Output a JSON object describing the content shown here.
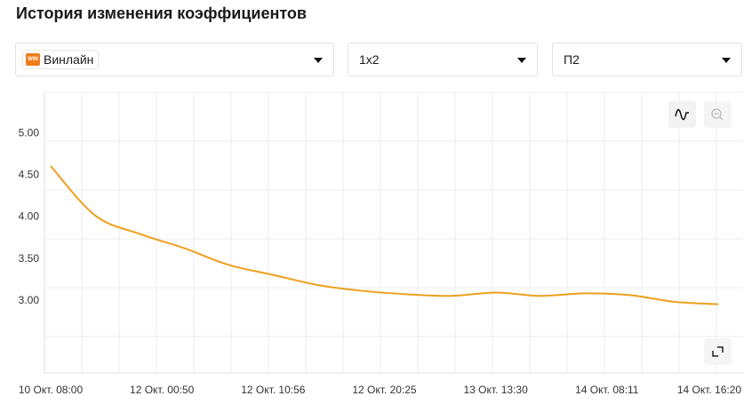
{
  "header": {
    "title": "История изменения коэффициентов"
  },
  "filters": {
    "bookmaker": "Винлайн",
    "bookmaker_icon": "WIN",
    "market": "1x2",
    "outcome": "П2"
  },
  "chart_data": {
    "type": "line",
    "x": [
      0,
      1,
      2,
      3,
      4,
      5,
      6,
      7,
      8,
      9,
      10,
      11,
      12,
      13,
      14,
      15
    ],
    "xlim": [
      -0.14,
      15.56
    ],
    "xticks": [
      {
        "value": 0,
        "label": "10 Окт. 08:00"
      },
      {
        "value": 2.5,
        "label": "12 Окт. 00:50"
      },
      {
        "value": 5,
        "label": "12 Окт. 10:56"
      },
      {
        "value": 7.5,
        "label": "12 Окт. 20:25"
      },
      {
        "value": 10,
        "label": "13 Окт. 13:30"
      },
      {
        "value": 12.5,
        "label": "14 Окт. 08:11"
      },
      {
        "value": 14.8,
        "label": "14 Окт. 16:20"
      }
    ],
    "ylim": [
      2.14,
      5.49
    ],
    "yticks": [
      {
        "value": 3,
        "label": "3.00"
      },
      {
        "value": 3.5,
        "label": "3.50"
      },
      {
        "value": 4,
        "label": "4.00"
      },
      {
        "value": 4.5,
        "label": "4.50"
      },
      {
        "value": 5,
        "label": "5.00"
      }
    ],
    "series": [
      {
        "color": "#ee9f1c",
        "values": [
          4.61,
          4.02,
          3.8,
          3.63,
          3.43,
          3.31,
          3.19,
          3.12,
          3.08,
          3.06,
          3.1,
          3.06,
          3.09,
          3.07,
          2.99,
          2.96
        ]
      }
    ]
  }
}
